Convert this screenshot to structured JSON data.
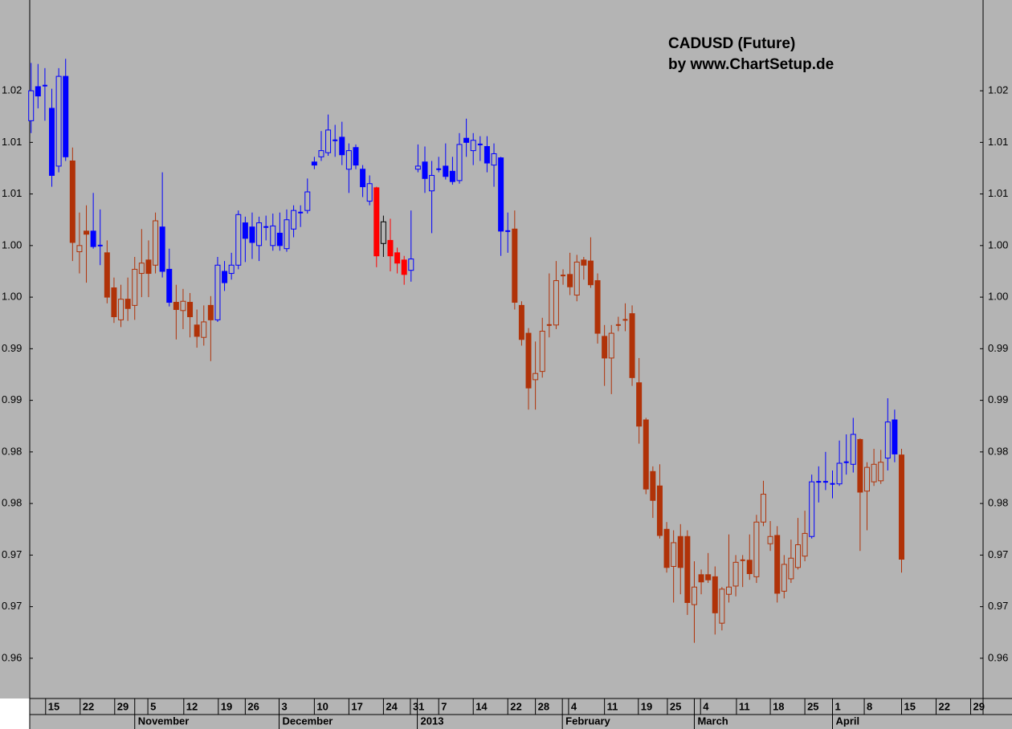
{
  "chart_data": {
    "type": "candlestick",
    "title": "CADUSD (Future)",
    "subtitle": "by www.ChartSetup.de",
    "xlim": [
      -0.2,
      137.8
    ],
    "ylim": [
      0.9611,
      1.0288
    ],
    "yticks": [
      {
        "value": 1.02,
        "label": "1.02"
      },
      {
        "value": 1.015,
        "label": "1.01"
      },
      {
        "value": 1.01,
        "label": "1.01"
      },
      {
        "value": 1.005,
        "label": "1.00"
      },
      {
        "value": 1.0,
        "label": "1.00"
      },
      {
        "value": 0.995,
        "label": "0.99"
      },
      {
        "value": 0.99,
        "label": "0.99"
      },
      {
        "value": 0.985,
        "label": "0.98"
      },
      {
        "value": 0.98,
        "label": "0.98"
      },
      {
        "value": 0.975,
        "label": "0.97"
      },
      {
        "value": 0.97,
        "label": "0.97"
      },
      {
        "value": 0.965,
        "label": "0.96"
      }
    ],
    "xticks": [
      {
        "value": 2.1,
        "label": "15"
      },
      {
        "value": 7.1,
        "label": "22"
      },
      {
        "value": 12.1,
        "label": "29"
      },
      {
        "value": 16.9,
        "label": "5"
      },
      {
        "value": 22.1,
        "label": "12"
      },
      {
        "value": 27.1,
        "label": "19"
      },
      {
        "value": 31.0,
        "label": "26"
      },
      {
        "value": 35.9,
        "label": "3"
      },
      {
        "value": 41.0,
        "label": "10"
      },
      {
        "value": 46.0,
        "label": "17"
      },
      {
        "value": 51.0,
        "label": "24"
      },
      {
        "value": 54.9,
        "label": "31"
      },
      {
        "value": 59.0,
        "label": "7"
      },
      {
        "value": 64.0,
        "label": "14"
      },
      {
        "value": 69.0,
        "label": "22"
      },
      {
        "value": 73.0,
        "label": "28"
      },
      {
        "value": 77.8,
        "label": "4"
      },
      {
        "value": 83.0,
        "label": "11"
      },
      {
        "value": 87.9,
        "label": "19"
      },
      {
        "value": 92.1,
        "label": "25"
      },
      {
        "value": 96.9,
        "label": "4"
      },
      {
        "value": 102.1,
        "label": "11"
      },
      {
        "value": 107.0,
        "label": "18"
      },
      {
        "value": 112.0,
        "label": "25"
      },
      {
        "value": 116.0,
        "label": "1"
      },
      {
        "value": 120.6,
        "label": "8"
      },
      {
        "value": 126.0,
        "label": "15"
      },
      {
        "value": 131.0,
        "label": "22"
      },
      {
        "value": 136.0,
        "label": "29"
      }
    ],
    "xmonths": [
      {
        "value": 15.0,
        "label": "November"
      },
      {
        "value": 35.9,
        "label": "December"
      },
      {
        "value": 55.9,
        "label": "2013"
      },
      {
        "value": 76.9,
        "label": "February"
      },
      {
        "value": 96.0,
        "label": "March"
      },
      {
        "value": 116.0,
        "label": "April"
      }
    ],
    "open": [
      1.0171,
      1.0204,
      1.0205,
      1.0183,
      1.0127,
      1.0214,
      1.0132,
      1.0044,
      1.0064,
      1.0064,
      1.005,
      1.0043,
      1.0009,
      0.9978,
      0.9998,
      0.9992,
      1.0023,
      1.0036,
      1.0031,
      1.0068,
      1.0027,
      0.9995,
      0.9987,
      0.9995,
      0.9973,
      0.9961,
      0.9992,
      0.9978,
      1.0025,
      1.0023,
      1.0031,
      1.0072,
      1.0068,
      1.005,
      1.0068,
      1.005,
      1.0062,
      1.0047,
      1.0066,
      1.0082,
      1.0084,
      1.0131,
      1.0136,
      1.014,
      1.0152,
      1.0155,
      1.0124,
      1.0145,
      1.0124,
      1.0093,
      1.0106,
      1.0052,
      1.0055,
      1.0043,
      1.0036,
      1.0026,
      1.0124,
      1.0131,
      1.0103,
      1.0124,
      1.0127,
      1.0122,
      1.0113,
      1.0154,
      1.0142,
      1.0148,
      1.0146,
      1.0128,
      1.0135,
      1.0064,
      1.0066,
      0.9992,
      0.9965,
      0.992,
      0.9928,
      0.9973,
      0.9973,
      1.0021,
      1.0022,
      1.0002,
      1.0036,
      1.0035,
      1.0016,
      0.9962,
      0.9941,
      0.9973,
      0.9978,
      0.9984,
      0.9917,
      0.9881,
      0.9831,
      0.9817,
      0.9775,
      0.9739,
      0.9768,
      0.9768,
      0.9702,
      0.9731,
      0.9731,
      0.9729,
      0.9684,
      0.9712,
      0.972,
      0.9745,
      0.9745,
      0.9729,
      0.9782,
      0.9761,
      0.9769,
      0.9715,
      0.9727,
      0.9738,
      0.9749,
      0.9768,
      0.9821,
      0.9821,
      0.9819,
      0.9819,
      0.984,
      0.9838,
      0.9862,
      0.9812,
      0.9821,
      0.9822,
      0.9844,
      0.9881,
      0.9847
    ],
    "high": [
      1.0227,
      1.0226,
      1.0222,
      1.0202,
      1.0222,
      1.0231,
      1.0145,
      1.0082,
      1.0089,
      1.0101,
      1.0085,
      1.0055,
      1.0019,
      1.0012,
      1.0019,
      1.0039,
      1.0066,
      1.0055,
      1.0082,
      1.0121,
      1.0047,
      1.0012,
      1.0008,
      1.0004,
      0.9988,
      0.9992,
      1.0001,
      1.0039,
      1.0035,
      1.0043,
      1.0084,
      1.0078,
      1.0082,
      1.0078,
      1.0079,
      1.0081,
      1.0082,
      1.0085,
      1.0089,
      1.0089,
      1.0115,
      1.0136,
      1.0161,
      1.0177,
      1.0167,
      1.017,
      1.0149,
      1.0148,
      1.0128,
      1.0118,
      1.0107,
      1.0079,
      1.0076,
      1.0048,
      1.004,
      1.0084,
      1.0148,
      1.0146,
      1.0132,
      1.0136,
      1.0149,
      1.0136,
      1.0159,
      1.0173,
      1.0159,
      1.0156,
      1.0156,
      1.0149,
      1.0136,
      1.0082,
      1.0084,
      0.9996,
      0.997,
      0.9957,
      0.998,
      1.0023,
      1.0035,
      1.0027,
      1.0043,
      1.0041,
      1.0039,
      1.0058,
      1.0023,
      0.9973,
      0.9973,
      0.9981,
      0.9994,
      0.9992,
      0.9941,
      0.9883,
      0.9836,
      0.9838,
      0.9782,
      0.9774,
      0.978,
      0.9774,
      0.9744,
      0.9736,
      0.9752,
      0.9739,
      0.9719,
      0.977,
      0.975,
      0.975,
      0.977,
      0.9789,
      0.9822,
      0.9783,
      0.9778,
      0.975,
      0.9765,
      0.9786,
      0.9793,
      0.9828,
      0.9836,
      0.985,
      0.9832,
      0.9861,
      0.9867,
      0.9883,
      0.9863,
      0.984,
      0.9853,
      0.9852,
      0.9902,
      0.9891,
      0.9853
    ],
    "low": [
      1.0159,
      1.0183,
      1.0171,
      1.0107,
      1.0121,
      1.0132,
      1.0035,
      1.0023,
      1.0014,
      1.0047,
      1.0031,
      0.9994,
      0.9975,
      0.9971,
      0.9977,
      0.9978,
      1.0,
      1.0,
      1.0023,
      1.0019,
      0.9991,
      0.9959,
      0.9969,
      0.9961,
      0.9951,
      0.9953,
      0.9938,
      0.9976,
      1.0006,
      1.0017,
      1.0027,
      1.0034,
      1.0037,
      1.0035,
      1.0055,
      1.0045,
      1.0045,
      1.0044,
      1.0058,
      1.0068,
      1.0081,
      1.0124,
      1.0132,
      1.0137,
      1.0136,
      1.0128,
      1.0101,
      1.0124,
      1.0097,
      1.0089,
      1.0029,
      1.0039,
      1.0025,
      1.0023,
      1.0012,
      1.0015,
      1.0121,
      1.0101,
      1.0062,
      1.0121,
      1.0114,
      1.0109,
      1.011,
      1.0136,
      1.0128,
      1.0132,
      1.0121,
      1.0107,
      1.004,
      1.0043,
      0.9988,
      0.9953,
      0.9891,
      0.9891,
      0.9922,
      0.9961,
      0.9969,
      1.0012,
      1.0002,
      0.9996,
      1.0017,
      1.0009,
      0.9955,
      0.9914,
      0.9906,
      0.9967,
      0.9967,
      0.9914,
      0.9858,
      0.9809,
      0.9786,
      0.9766,
      0.9733,
      0.9704,
      0.9712,
      0.9692,
      0.9665,
      0.9712,
      0.9723,
      0.9673,
      0.9677,
      0.9704,
      0.971,
      0.9719,
      0.9726,
      0.9723,
      0.9778,
      0.9754,
      0.9704,
      0.9708,
      0.9723,
      0.9736,
      0.9744,
      0.9766,
      0.9801,
      0.9813,
      0.9805,
      0.9817,
      0.9828,
      0.983,
      0.9754,
      0.9774,
      0.9817,
      0.9819,
      0.9832,
      0.984,
      0.9733
    ],
    "close": [
      1.02,
      1.0195,
      1.0205,
      1.0118,
      1.0214,
      1.0136,
      1.0053,
      1.005,
      1.0061,
      1.0049,
      1.005,
      1.0,
      0.9981,
      0.9998,
      0.9989,
      1.0027,
      1.0033,
      1.0023,
      1.0074,
      1.0025,
      0.9995,
      0.9988,
      0.9996,
      0.9981,
      0.9962,
      0.9976,
      0.9978,
      1.0031,
      1.0014,
      1.0031,
      1.008,
      1.0057,
      1.0053,
      1.0072,
      1.0068,
      1.0069,
      1.005,
      1.0075,
      1.0084,
      1.0082,
      1.0102,
      1.0128,
      1.0142,
      1.0162,
      1.0152,
      1.0138,
      1.0142,
      1.0128,
      1.0107,
      1.011,
      1.004,
      1.0073,
      1.004,
      1.0033,
      1.0022,
      1.0037,
      1.0127,
      1.0115,
      1.0118,
      1.0124,
      1.0117,
      1.0112,
      1.0148,
      1.015,
      1.0152,
      1.0148,
      1.013,
      1.0139,
      1.0064,
      1.0064,
      0.9995,
      0.9959,
      0.9912,
      0.9926,
      0.9967,
      0.9973,
      1.0016,
      1.0021,
      1.001,
      1.0034,
      1.0031,
      1.0012,
      0.9965,
      0.9941,
      0.9965,
      0.9973,
      0.9978,
      0.9922,
      0.9875,
      0.9814,
      0.9803,
      0.9769,
      0.9738,
      0.9762,
      0.9738,
      0.9704,
      0.9719,
      0.9724,
      0.9726,
      0.9694,
      0.9717,
      0.9719,
      0.9743,
      0.9745,
      0.9732,
      0.9782,
      0.9809,
      0.9768,
      0.9713,
      0.9741,
      0.9747,
      0.976,
      0.9771,
      0.9821,
      0.9821,
      0.9821,
      0.9819,
      0.9839,
      0.984,
      0.9867,
      0.9811,
      0.9835,
      0.9838,
      0.984,
      0.9879,
      0.9848,
      0.9746
    ],
    "colors": [
      "#0000ff",
      "#0000ff",
      "#0000ff",
      "#0000ff",
      "#0000ff",
      "#0000ff",
      "#b03208",
      "#b03208",
      "#b03208",
      "#0000ff",
      "#0000ff",
      "#b03208",
      "#b03208",
      "#b03208",
      "#b03208",
      "#b03208",
      "#b03208",
      "#b03208",
      "#b03208",
      "#0000ff",
      "#0000ff",
      "#b03208",
      "#b03208",
      "#b03208",
      "#b03208",
      "#b03208",
      "#b03208",
      "#0000ff",
      "#0000ff",
      "#0000ff",
      "#0000ff",
      "#0000ff",
      "#0000ff",
      "#0000ff",
      "#0000ff",
      "#0000ff",
      "#0000ff",
      "#0000ff",
      "#0000ff",
      "#0000ff",
      "#0000ff",
      "#0000ff",
      "#0000ff",
      "#0000ff",
      "#0000ff",
      "#0000ff",
      "#0000ff",
      "#0000ff",
      "#0000ff",
      "#0000ff",
      "#ff0000",
      "#000000",
      "#ff0000",
      "#ff0000",
      "#ff0000",
      "#0000ff",
      "#0000ff",
      "#0000ff",
      "#0000ff",
      "#0000ff",
      "#0000ff",
      "#0000ff",
      "#0000ff",
      "#0000ff",
      "#0000ff",
      "#0000ff",
      "#0000ff",
      "#0000ff",
      "#0000ff",
      "#0000ff",
      "#b03208",
      "#b03208",
      "#b03208",
      "#b03208",
      "#b03208",
      "#b03208",
      "#b03208",
      "#b03208",
      "#b03208",
      "#b03208",
      "#b03208",
      "#b03208",
      "#b03208",
      "#b03208",
      "#b03208",
      "#b03208",
      "#b03208",
      "#b03208",
      "#b03208",
      "#b03208",
      "#b03208",
      "#b03208",
      "#b03208",
      "#b03208",
      "#b03208",
      "#b03208",
      "#b03208",
      "#b03208",
      "#b03208",
      "#b03208",
      "#b03208",
      "#b03208",
      "#b03208",
      "#b03208",
      "#b03208",
      "#b03208",
      "#b03208",
      "#b03208",
      "#b03208",
      "#b03208",
      "#b03208",
      "#b03208",
      "#b03208",
      "#0000ff",
      "#0000ff",
      "#0000ff",
      "#0000ff",
      "#0000ff",
      "#0000ff",
      "#0000ff",
      "#b03208",
      "#b03208",
      "#b03208",
      "#b03208",
      "#0000ff",
      "#0000ff",
      "#b03208"
    ]
  }
}
